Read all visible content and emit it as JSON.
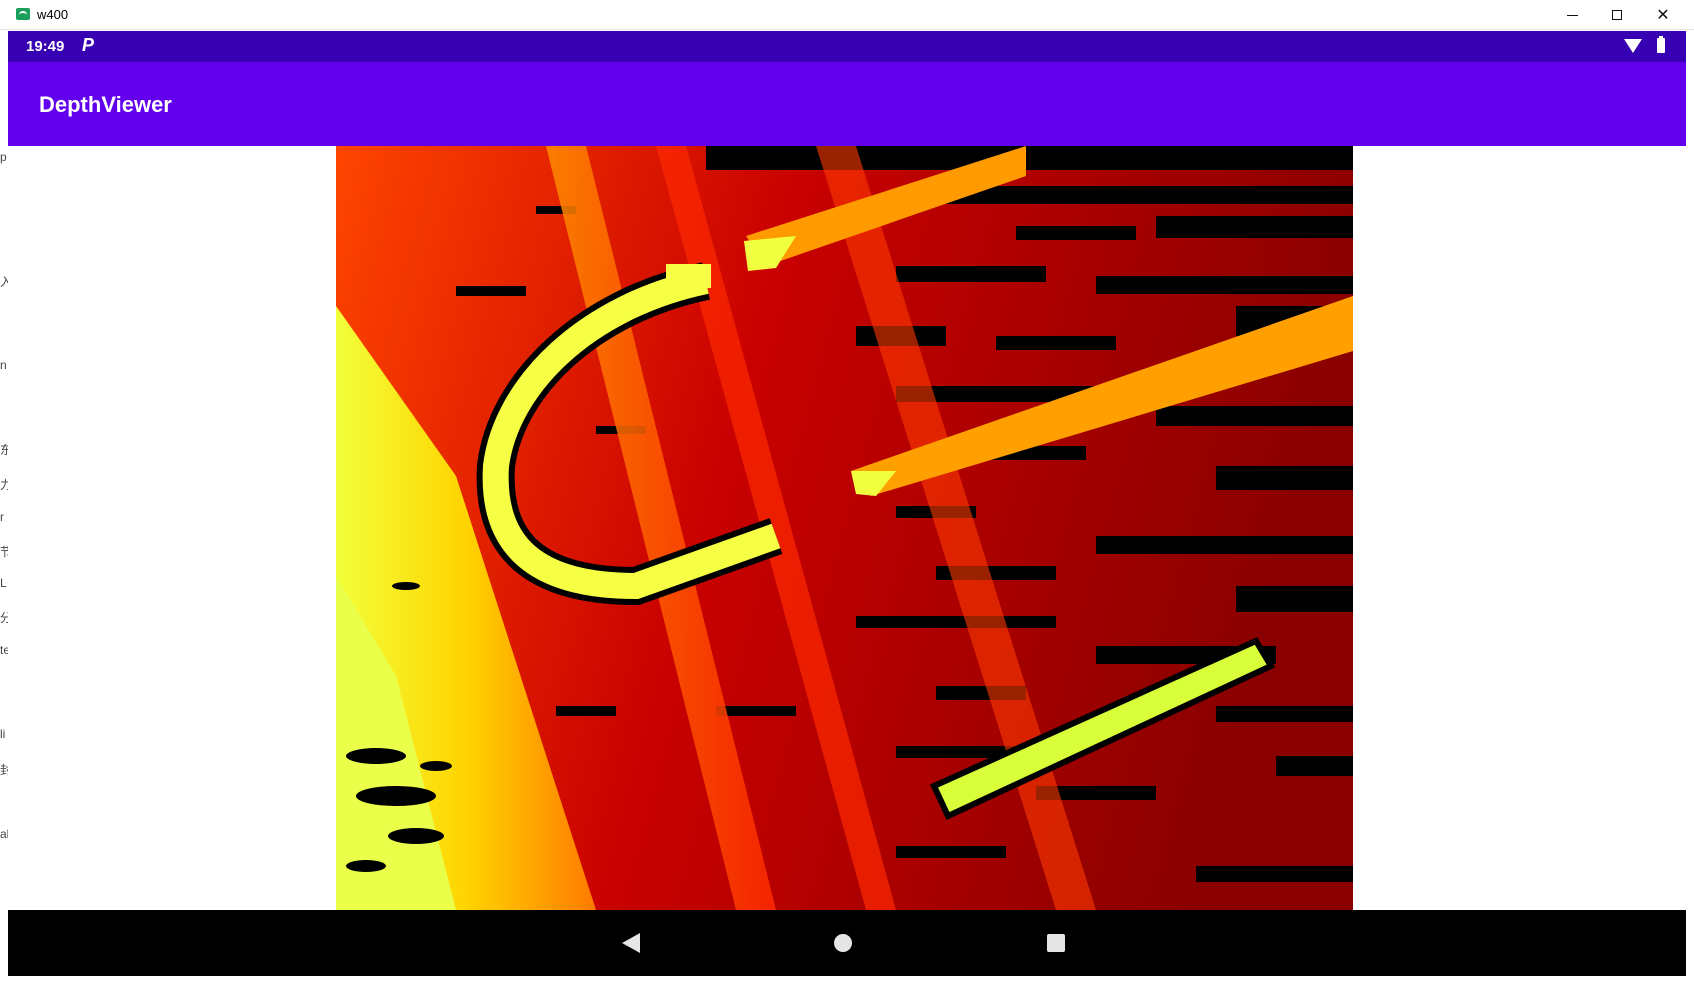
{
  "window": {
    "title": "w400",
    "controls": [
      "minimize-icon",
      "maximize-icon",
      "close-icon"
    ]
  },
  "status_bar": {
    "time": "19:49",
    "notification_icon": "P",
    "icons": [
      "wifi-icon",
      "battery-icon"
    ]
  },
  "app_bar": {
    "title": "DepthViewer"
  },
  "content": {
    "image": "depth-map-image"
  },
  "navigation": {
    "buttons": [
      "back-icon",
      "home-icon",
      "recents-icon"
    ]
  },
  "host_fragments": {
    "left_glyphs": [
      "p",
      "入",
      "n",
      "东",
      "力",
      "r",
      "节",
      "L",
      "分",
      "te",
      "li",
      "封",
      "al"
    ]
  },
  "colors": {
    "status_bar": "#3700b3",
    "app_bar": "#6200ee",
    "nav_bar": "#000000"
  }
}
